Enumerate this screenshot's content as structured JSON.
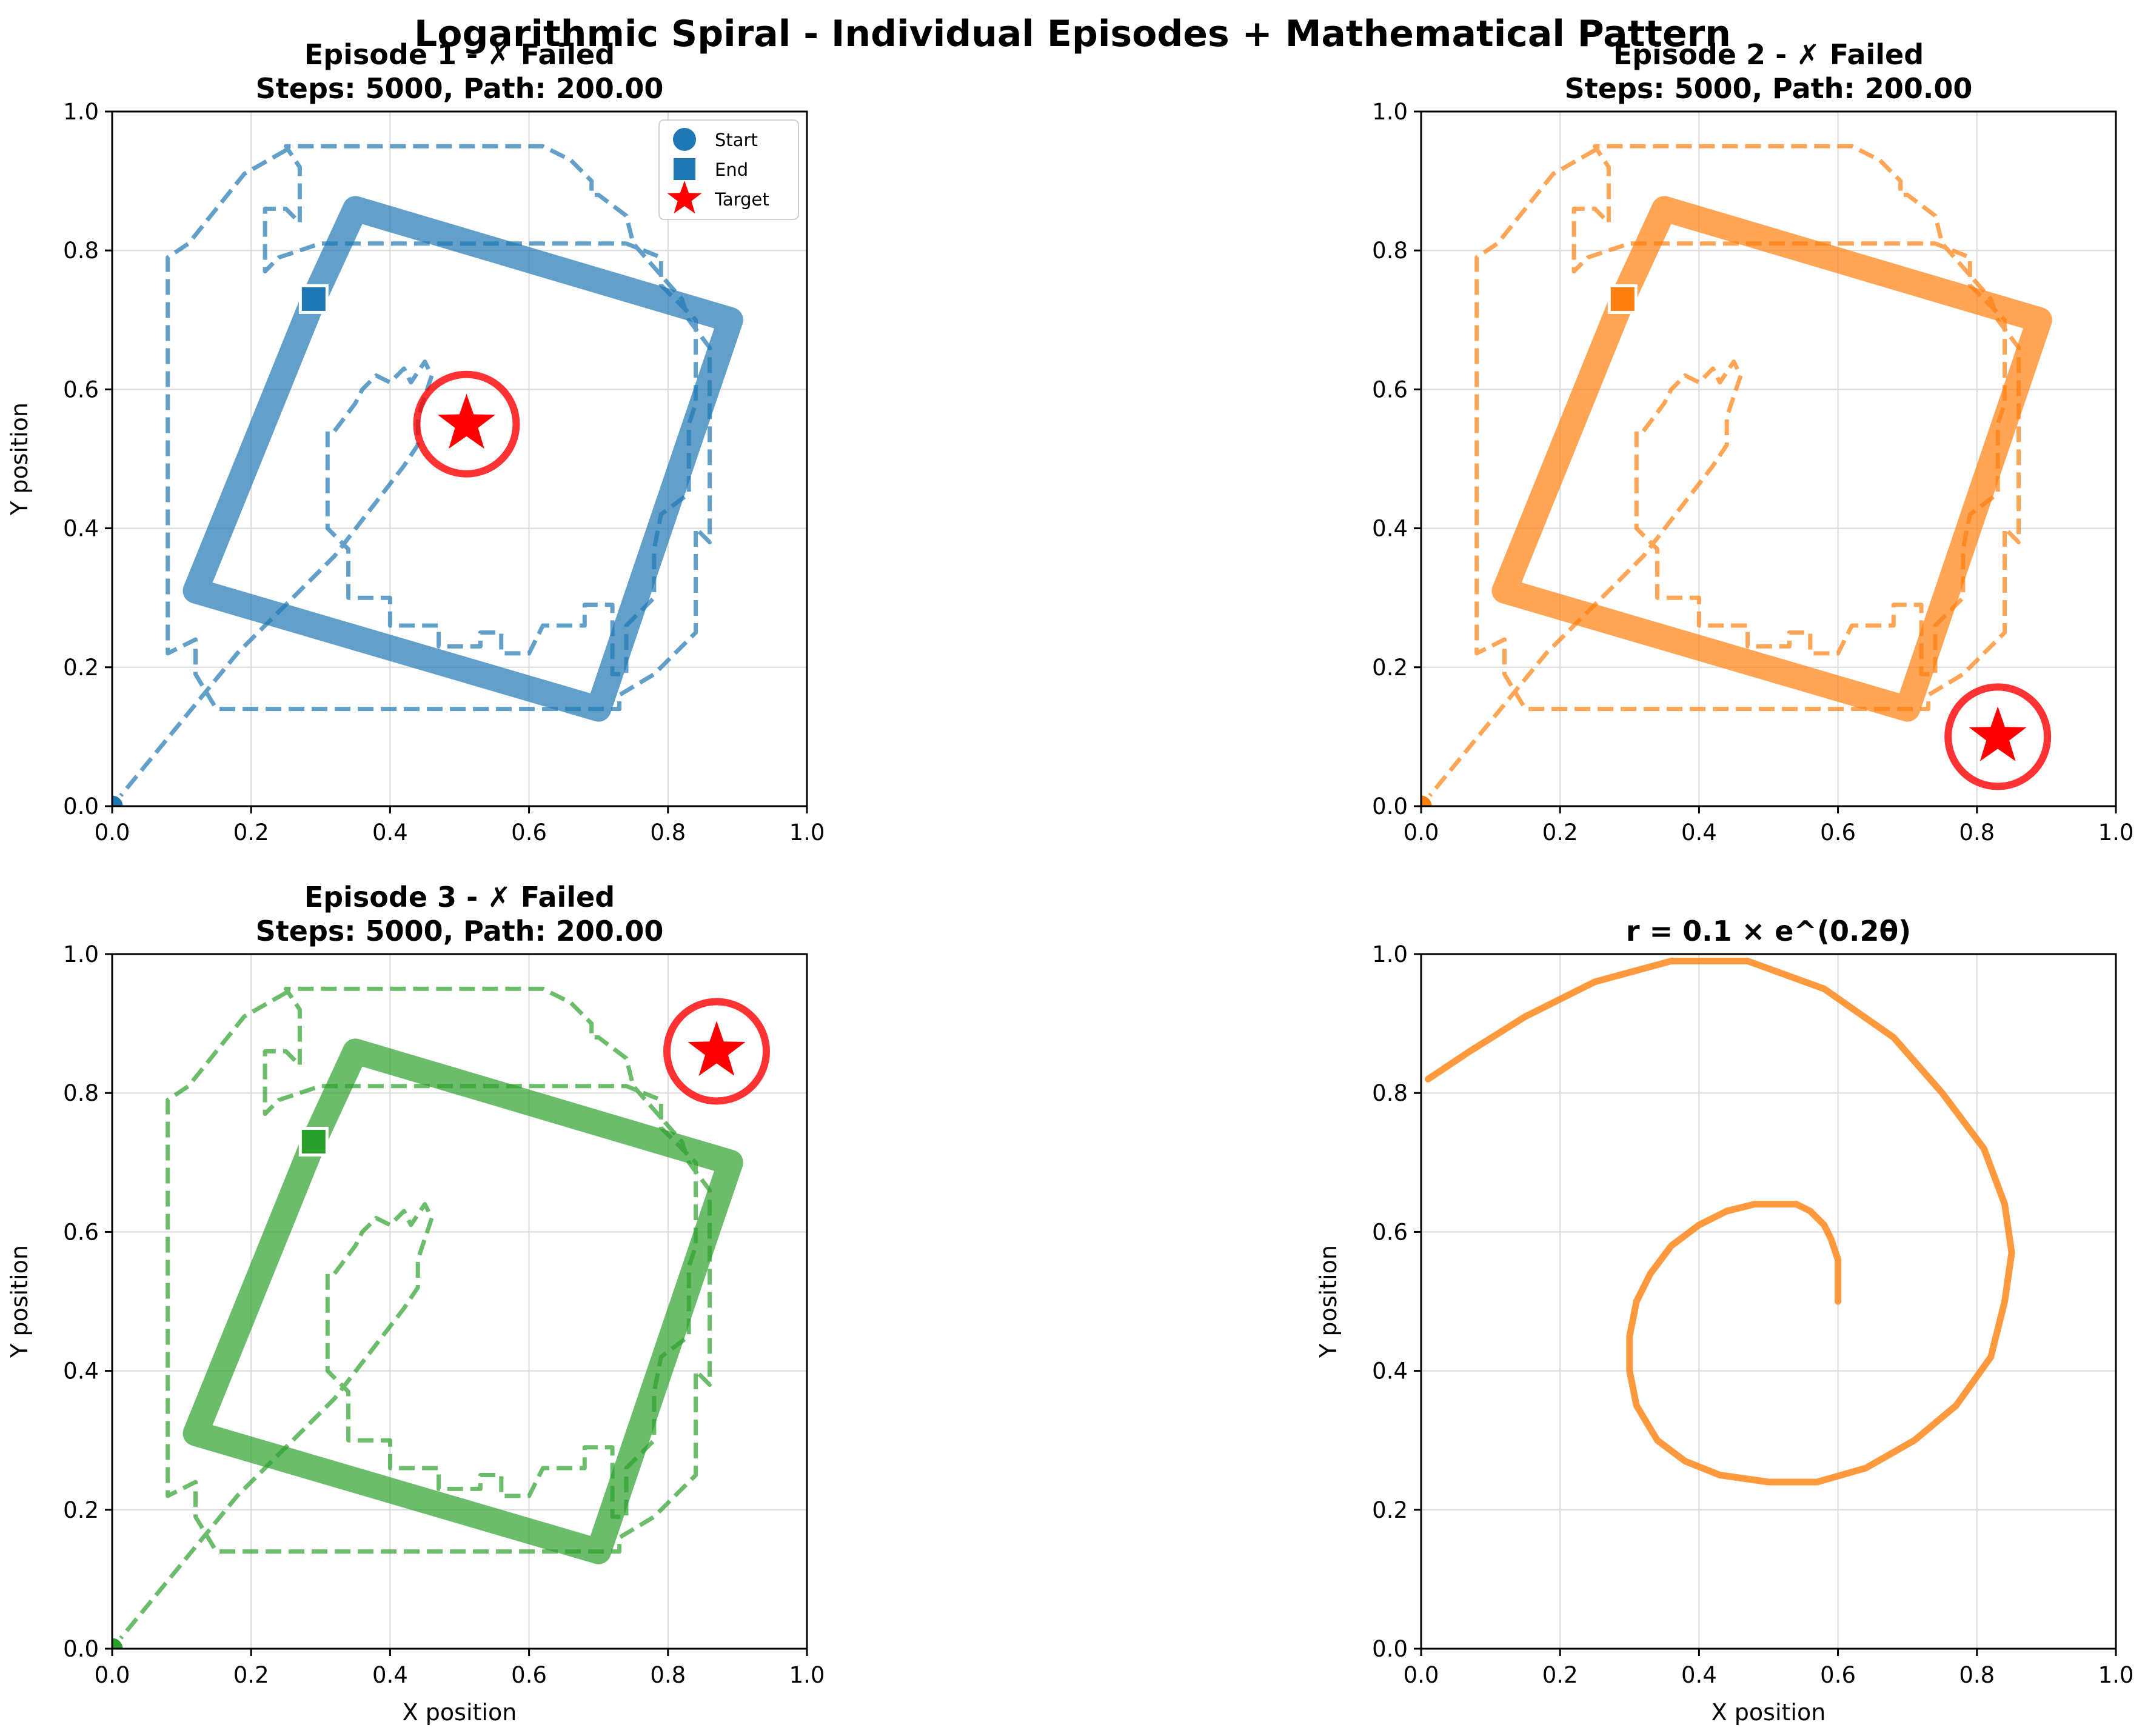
{
  "suptitle": "Logarithmic Spiral - Individual Episodes + Mathematical Pattern",
  "colors": {
    "episode_1": "#1f77b4",
    "episode_2": "#ff7f0e",
    "episode_3": "#2ca02c",
    "target": "#ff0000",
    "grid": "#d9d9d9"
  },
  "chart_data": [
    {
      "type": "line",
      "title": "Episode 1 - ✗ Failed\nSteps: 5000, Path: 200.00",
      "xlabel": "",
      "ylabel": "Y position",
      "xlim": [
        0,
        1
      ],
      "ylim": [
        0,
        1
      ],
      "xticks": [
        "0.0",
        "0.2",
        "0.4",
        "0.6",
        "0.8",
        "1.0"
      ],
      "yticks": [
        "0.0",
        "0.2",
        "0.4",
        "0.6",
        "0.8",
        "1.0"
      ],
      "grid": true,
      "legend": {
        "placement": "top-right",
        "entries": [
          "Start",
          "End",
          "Target"
        ]
      },
      "color": "#1f77b4",
      "start": [
        0.0,
        0.0
      ],
      "end": [
        0.29,
        0.73
      ],
      "target": [
        0.51,
        0.55
      ],
      "dashed_path": [
        [
          0.0,
          0.0
        ],
        [
          0.18,
          0.22
        ],
        [
          0.32,
          0.36
        ],
        [
          0.42,
          0.49
        ],
        [
          0.44,
          0.52
        ],
        [
          0.44,
          0.56
        ],
        [
          0.45,
          0.59
        ],
        [
          0.46,
          0.62
        ],
        [
          0.45,
          0.64
        ],
        [
          0.43,
          0.61
        ],
        [
          0.42,
          0.63
        ],
        [
          0.4,
          0.61
        ],
        [
          0.38,
          0.62
        ],
        [
          0.36,
          0.6
        ],
        [
          0.35,
          0.58
        ],
        [
          0.32,
          0.54
        ],
        [
          0.31,
          0.54
        ],
        [
          0.31,
          0.4
        ],
        [
          0.34,
          0.37
        ],
        [
          0.34,
          0.3
        ],
        [
          0.4,
          0.3
        ],
        [
          0.4,
          0.26
        ],
        [
          0.47,
          0.26
        ],
        [
          0.47,
          0.23
        ],
        [
          0.53,
          0.23
        ],
        [
          0.53,
          0.25
        ],
        [
          0.56,
          0.25
        ],
        [
          0.56,
          0.22
        ],
        [
          0.6,
          0.22
        ],
        [
          0.62,
          0.26
        ],
        [
          0.68,
          0.26
        ],
        [
          0.68,
          0.29
        ],
        [
          0.72,
          0.29
        ],
        [
          0.72,
          0.19
        ],
        [
          0.74,
          0.19
        ],
        [
          0.74,
          0.26
        ],
        [
          0.78,
          0.3
        ],
        [
          0.78,
          0.37
        ],
        [
          0.79,
          0.42
        ],
        [
          0.83,
          0.45
        ],
        [
          0.83,
          0.55
        ],
        [
          0.84,
          0.58
        ],
        [
          0.84,
          0.7
        ],
        [
          0.79,
          0.75
        ],
        [
          0.79,
          0.79
        ],
        [
          0.74,
          0.81
        ],
        [
          0.55,
          0.81
        ],
        [
          0.42,
          0.81
        ],
        [
          0.3,
          0.81
        ],
        [
          0.24,
          0.79
        ],
        [
          0.22,
          0.77
        ],
        [
          0.22,
          0.86
        ],
        [
          0.25,
          0.86
        ],
        [
          0.27,
          0.84
        ],
        [
          0.27,
          0.92
        ],
        [
          0.25,
          0.95
        ],
        [
          0.62,
          0.95
        ],
        [
          0.66,
          0.93
        ],
        [
          0.69,
          0.9
        ],
        [
          0.69,
          0.88
        ],
        [
          0.7,
          0.88
        ],
        [
          0.74,
          0.85
        ],
        [
          0.75,
          0.81
        ],
        [
          0.82,
          0.73
        ],
        [
          0.83,
          0.7
        ],
        [
          0.86,
          0.66
        ],
        [
          0.86,
          0.38
        ],
        [
          0.84,
          0.4
        ],
        [
          0.84,
          0.25
        ],
        [
          0.78,
          0.19
        ],
        [
          0.73,
          0.16
        ],
        [
          0.73,
          0.14
        ],
        [
          0.4,
          0.14
        ],
        [
          0.15,
          0.14
        ],
        [
          0.12,
          0.19
        ],
        [
          0.12,
          0.24
        ],
        [
          0.08,
          0.22
        ],
        [
          0.08,
          0.79
        ],
        [
          0.11,
          0.81
        ],
        [
          0.19,
          0.91
        ],
        [
          0.26,
          0.95
        ]
      ],
      "thick_path": [
        [
          0.29,
          0.73
        ],
        [
          0.12,
          0.31
        ],
        [
          0.7,
          0.14
        ],
        [
          0.89,
          0.7
        ],
        [
          0.35,
          0.86
        ],
        [
          0.29,
          0.73
        ]
      ]
    },
    {
      "type": "line",
      "title": "Episode 2 - ✗ Failed\nSteps: 5000, Path: 200.00",
      "xlabel": "",
      "ylabel": "",
      "xlim": [
        0,
        1
      ],
      "ylim": [
        0,
        1
      ],
      "xticks": [
        "0.0",
        "0.2",
        "0.4",
        "0.6",
        "0.8",
        "1.0"
      ],
      "yticks": [
        "0.0",
        "0.2",
        "0.4",
        "0.6",
        "0.8",
        "1.0"
      ],
      "grid": true,
      "color": "#ff7f0e",
      "start": [
        0.0,
        0.0
      ],
      "end": [
        0.29,
        0.73
      ],
      "target": [
        0.83,
        0.1
      ],
      "dashed_path": [
        [
          0.0,
          0.0
        ],
        [
          0.18,
          0.22
        ],
        [
          0.32,
          0.36
        ],
        [
          0.42,
          0.49
        ],
        [
          0.44,
          0.52
        ],
        [
          0.44,
          0.56
        ],
        [
          0.45,
          0.59
        ],
        [
          0.46,
          0.62
        ],
        [
          0.45,
          0.64
        ],
        [
          0.43,
          0.61
        ],
        [
          0.42,
          0.63
        ],
        [
          0.4,
          0.61
        ],
        [
          0.38,
          0.62
        ],
        [
          0.36,
          0.6
        ],
        [
          0.35,
          0.58
        ],
        [
          0.32,
          0.54
        ],
        [
          0.31,
          0.54
        ],
        [
          0.31,
          0.4
        ],
        [
          0.34,
          0.37
        ],
        [
          0.34,
          0.3
        ],
        [
          0.4,
          0.3
        ],
        [
          0.4,
          0.26
        ],
        [
          0.47,
          0.26
        ],
        [
          0.47,
          0.23
        ],
        [
          0.53,
          0.23
        ],
        [
          0.53,
          0.25
        ],
        [
          0.56,
          0.25
        ],
        [
          0.56,
          0.22
        ],
        [
          0.6,
          0.22
        ],
        [
          0.62,
          0.26
        ],
        [
          0.68,
          0.26
        ],
        [
          0.68,
          0.29
        ],
        [
          0.72,
          0.29
        ],
        [
          0.72,
          0.19
        ],
        [
          0.74,
          0.19
        ],
        [
          0.74,
          0.26
        ],
        [
          0.78,
          0.3
        ],
        [
          0.78,
          0.37
        ],
        [
          0.79,
          0.42
        ],
        [
          0.83,
          0.45
        ],
        [
          0.83,
          0.55
        ],
        [
          0.84,
          0.58
        ],
        [
          0.84,
          0.7
        ],
        [
          0.79,
          0.75
        ],
        [
          0.79,
          0.79
        ],
        [
          0.74,
          0.81
        ],
        [
          0.55,
          0.81
        ],
        [
          0.42,
          0.81
        ],
        [
          0.3,
          0.81
        ],
        [
          0.24,
          0.79
        ],
        [
          0.22,
          0.77
        ],
        [
          0.22,
          0.86
        ],
        [
          0.25,
          0.86
        ],
        [
          0.27,
          0.84
        ],
        [
          0.27,
          0.92
        ],
        [
          0.25,
          0.95
        ],
        [
          0.62,
          0.95
        ],
        [
          0.66,
          0.93
        ],
        [
          0.69,
          0.9
        ],
        [
          0.69,
          0.88
        ],
        [
          0.7,
          0.88
        ],
        [
          0.74,
          0.85
        ],
        [
          0.75,
          0.81
        ],
        [
          0.82,
          0.73
        ],
        [
          0.83,
          0.7
        ],
        [
          0.86,
          0.66
        ],
        [
          0.86,
          0.38
        ],
        [
          0.84,
          0.4
        ],
        [
          0.84,
          0.25
        ],
        [
          0.78,
          0.19
        ],
        [
          0.73,
          0.16
        ],
        [
          0.73,
          0.14
        ],
        [
          0.4,
          0.14
        ],
        [
          0.15,
          0.14
        ],
        [
          0.12,
          0.19
        ],
        [
          0.12,
          0.24
        ],
        [
          0.08,
          0.22
        ],
        [
          0.08,
          0.79
        ],
        [
          0.11,
          0.81
        ],
        [
          0.19,
          0.91
        ],
        [
          0.26,
          0.95
        ]
      ],
      "thick_path": [
        [
          0.29,
          0.73
        ],
        [
          0.12,
          0.31
        ],
        [
          0.7,
          0.14
        ],
        [
          0.89,
          0.7
        ],
        [
          0.35,
          0.86
        ],
        [
          0.29,
          0.73
        ]
      ]
    },
    {
      "type": "line",
      "title": "Episode 3 - ✗ Failed\nSteps: 5000, Path: 200.00",
      "xlabel": "X position",
      "ylabel": "Y position",
      "xlim": [
        0,
        1
      ],
      "ylim": [
        0,
        1
      ],
      "xticks": [
        "0.0",
        "0.2",
        "0.4",
        "0.6",
        "0.8",
        "1.0"
      ],
      "yticks": [
        "0.0",
        "0.2",
        "0.4",
        "0.6",
        "0.8",
        "1.0"
      ],
      "grid": true,
      "color": "#2ca02c",
      "start": [
        0.0,
        0.0
      ],
      "end": [
        0.29,
        0.73
      ],
      "target": [
        0.87,
        0.86
      ],
      "dashed_path": [
        [
          0.0,
          0.0
        ],
        [
          0.18,
          0.22
        ],
        [
          0.32,
          0.36
        ],
        [
          0.42,
          0.49
        ],
        [
          0.44,
          0.52
        ],
        [
          0.44,
          0.56
        ],
        [
          0.45,
          0.59
        ],
        [
          0.46,
          0.62
        ],
        [
          0.45,
          0.64
        ],
        [
          0.43,
          0.61
        ],
        [
          0.42,
          0.63
        ],
        [
          0.4,
          0.61
        ],
        [
          0.38,
          0.62
        ],
        [
          0.36,
          0.6
        ],
        [
          0.35,
          0.58
        ],
        [
          0.32,
          0.54
        ],
        [
          0.31,
          0.54
        ],
        [
          0.31,
          0.4
        ],
        [
          0.34,
          0.37
        ],
        [
          0.34,
          0.3
        ],
        [
          0.4,
          0.3
        ],
        [
          0.4,
          0.26
        ],
        [
          0.47,
          0.26
        ],
        [
          0.47,
          0.23
        ],
        [
          0.53,
          0.23
        ],
        [
          0.53,
          0.25
        ],
        [
          0.56,
          0.25
        ],
        [
          0.56,
          0.22
        ],
        [
          0.6,
          0.22
        ],
        [
          0.62,
          0.26
        ],
        [
          0.68,
          0.26
        ],
        [
          0.68,
          0.29
        ],
        [
          0.72,
          0.29
        ],
        [
          0.72,
          0.19
        ],
        [
          0.74,
          0.19
        ],
        [
          0.74,
          0.26
        ],
        [
          0.78,
          0.3
        ],
        [
          0.78,
          0.37
        ],
        [
          0.79,
          0.42
        ],
        [
          0.83,
          0.45
        ],
        [
          0.83,
          0.55
        ],
        [
          0.84,
          0.58
        ],
        [
          0.84,
          0.7
        ],
        [
          0.79,
          0.75
        ],
        [
          0.79,
          0.79
        ],
        [
          0.74,
          0.81
        ],
        [
          0.55,
          0.81
        ],
        [
          0.42,
          0.81
        ],
        [
          0.3,
          0.81
        ],
        [
          0.24,
          0.79
        ],
        [
          0.22,
          0.77
        ],
        [
          0.22,
          0.86
        ],
        [
          0.25,
          0.86
        ],
        [
          0.27,
          0.84
        ],
        [
          0.27,
          0.92
        ],
        [
          0.25,
          0.95
        ],
        [
          0.62,
          0.95
        ],
        [
          0.66,
          0.93
        ],
        [
          0.69,
          0.9
        ],
        [
          0.69,
          0.88
        ],
        [
          0.7,
          0.88
        ],
        [
          0.74,
          0.85
        ],
        [
          0.75,
          0.81
        ],
        [
          0.82,
          0.73
        ],
        [
          0.83,
          0.7
        ],
        [
          0.86,
          0.66
        ],
        [
          0.86,
          0.38
        ],
        [
          0.84,
          0.4
        ],
        [
          0.84,
          0.25
        ],
        [
          0.78,
          0.19
        ],
        [
          0.73,
          0.16
        ],
        [
          0.73,
          0.14
        ],
        [
          0.4,
          0.14
        ],
        [
          0.15,
          0.14
        ],
        [
          0.12,
          0.19
        ],
        [
          0.12,
          0.24
        ],
        [
          0.08,
          0.22
        ],
        [
          0.08,
          0.79
        ],
        [
          0.11,
          0.81
        ],
        [
          0.19,
          0.91
        ],
        [
          0.26,
          0.95
        ]
      ],
      "thick_path": [
        [
          0.29,
          0.73
        ],
        [
          0.12,
          0.31
        ],
        [
          0.7,
          0.14
        ],
        [
          0.89,
          0.7
        ],
        [
          0.35,
          0.86
        ],
        [
          0.29,
          0.73
        ]
      ]
    },
    {
      "type": "line",
      "title": "r = 0.1 × e^(0.2θ)",
      "xlabel": "X position",
      "ylabel": "Y position",
      "xlim": [
        0,
        1
      ],
      "ylim": [
        0,
        1
      ],
      "xticks": [
        "0.0",
        "0.2",
        "0.4",
        "0.6",
        "0.8",
        "1.0"
      ],
      "yticks": [
        "0.0",
        "0.2",
        "0.4",
        "0.6",
        "0.8",
        "1.0"
      ],
      "grid": true,
      "color": "#ff7f0e",
      "series": [
        {
          "x": [
            0.6,
            0.6,
            0.6,
            0.59,
            0.58,
            0.56,
            0.54,
            0.51,
            0.48,
            0.44,
            0.4,
            0.36,
            0.33,
            0.31,
            0.3,
            0.3,
            0.31,
            0.34,
            0.38,
            0.43,
            0.5,
            0.57,
            0.64,
            0.71,
            0.77,
            0.82,
            0.84,
            0.85,
            0.84,
            0.81,
            0.75,
            0.68,
            0.58,
            0.47,
            0.36,
            0.25,
            0.15,
            0.07,
            0.01
          ],
          "y": [
            0.5,
            0.53,
            0.56,
            0.59,
            0.61,
            0.63,
            0.64,
            0.64,
            0.64,
            0.63,
            0.61,
            0.58,
            0.54,
            0.5,
            0.45,
            0.4,
            0.35,
            0.3,
            0.27,
            0.25,
            0.24,
            0.24,
            0.26,
            0.3,
            0.35,
            0.42,
            0.5,
            0.57,
            0.64,
            0.72,
            0.8,
            0.88,
            0.95,
            0.99,
            0.99,
            0.96,
            0.91,
            0.86,
            0.82
          ]
        }
      ]
    }
  ]
}
